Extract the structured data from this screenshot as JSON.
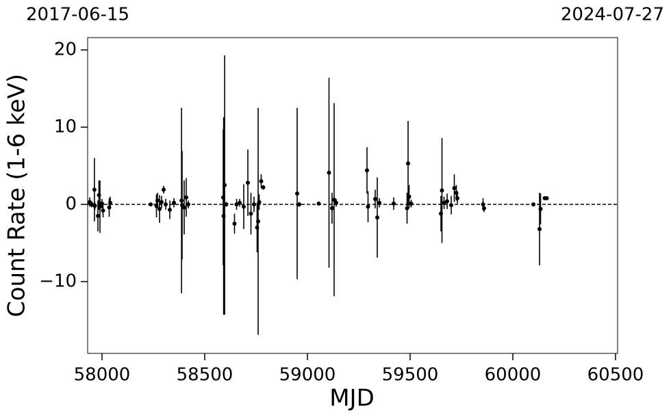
{
  "chart_data": {
    "type": "errorbar-scatter",
    "annotations": [
      "2017-06-15",
      "2024-07-27"
    ],
    "x_label": "MJD",
    "y_label": "Count Rate (1-6 keV)",
    "xlim": [
      57930,
      60510
    ],
    "ylim": [
      -19.3,
      21.6
    ],
    "xticks": [
      58000,
      58500,
      59000,
      59500,
      60000,
      60500
    ],
    "yticks": [
      {
        "value": -10,
        "label": "−10"
      },
      0,
      10,
      20
    ],
    "hline": 0,
    "color": "#000000",
    "series": [
      {
        "name": "Count Rate",
        "x": [
          57940,
          57950,
          57963,
          57965,
          57980,
          57985,
          57990,
          58000,
          58005,
          58035,
          58040,
          58237,
          58265,
          58270,
          58280,
          58290,
          58300,
          58310,
          58330,
          58350,
          58387,
          58390,
          58400,
          58410,
          58420,
          58590,
          58592,
          58597,
          58605,
          58645,
          58655,
          58670,
          58690,
          58710,
          58725,
          58740,
          58755,
          58760,
          58765,
          58775,
          58785,
          58950,
          58960,
          59055,
          59105,
          59120,
          59130,
          59140,
          59290,
          59295,
          59330,
          59340,
          59350,
          59420,
          59485,
          59490,
          59495,
          59505,
          59650,
          59655,
          59665,
          59680,
          59700,
          59715,
          59725,
          59730,
          59855,
          59860,
          60100,
          60130,
          60135,
          60155,
          60165
        ],
        "values": [
          0.3,
          0.0,
          1.9,
          -0.2,
          -1.5,
          1.2,
          -0.3,
          0.1,
          -0.8,
          -0.4,
          0.2,
          0.0,
          -0.2,
          0.5,
          -0.6,
          0.3,
          1.9,
          0.0,
          -0.7,
          0.2,
          0.5,
          -0.1,
          -0.4,
          0.9,
          0.0,
          0.9,
          -1.5,
          2.5,
          0.0,
          -2.5,
          0.0,
          0.2,
          -0.3,
          2.8,
          -1.2,
          0.0,
          -3.0,
          -2.2,
          0.3,
          3.0,
          2.2,
          1.4,
          0.0,
          0.1,
          4.1,
          -0.5,
          0.6,
          0.2,
          4.4,
          -0.3,
          0.7,
          -1.7,
          0.2,
          0.1,
          -0.5,
          5.3,
          1.0,
          0.1,
          -1.2,
          1.8,
          0.2,
          0.4,
          -0.1,
          2.1,
          1.5,
          0.8,
          0.0,
          -0.5,
          0.0,
          -3.2,
          -0.6,
          0.8,
          0.8
        ],
        "errors": [
          0.6,
          0.4,
          4.1,
          0.5,
          2.0,
          1.9,
          3.4,
          0.6,
          0.9,
          1.2,
          0.8,
          0.2,
          1.5,
          1.0,
          1.8,
          0.8,
          0.5,
          0.7,
          1.2,
          0.6,
          12.0,
          7.0,
          3.5,
          2.5,
          0.5,
          8.8,
          12.8,
          16.8,
          0.3,
          1.3,
          0.7,
          0.5,
          2.9,
          4.3,
          2.7,
          1.0,
          3.2,
          14.7,
          1.0,
          0.9,
          0.3,
          11.1,
          0.3,
          0.2,
          12.3,
          2.0,
          12.5,
          0.5,
          3.0,
          2.0,
          1.2,
          5.2,
          0.6,
          0.8,
          2.0,
          5.5,
          1.5,
          0.5,
          2.3,
          6.8,
          0.8,
          1.0,
          1.2,
          1.8,
          1.0,
          0.7,
          0.8,
          0.5,
          0.2,
          4.7,
          2.0,
          0.2,
          0.1
        ]
      }
    ]
  }
}
